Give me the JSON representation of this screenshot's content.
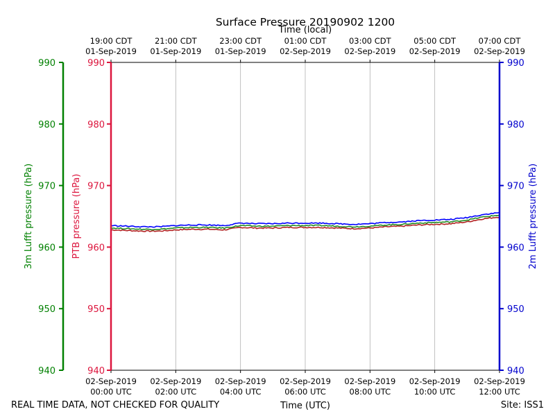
{
  "chart_data": {
    "type": "line",
    "title": "Surface Pressure 20190902 1200",
    "top_axis_label": "Time (local)",
    "xlabel": "Time (UTC)",
    "x_ticks_utc": [
      [
        "02-Sep-2019",
        "00:00 UTC"
      ],
      [
        "02-Sep-2019",
        "02:00 UTC"
      ],
      [
        "02-Sep-2019",
        "04:00 UTC"
      ],
      [
        "02-Sep-2019",
        "06:00 UTC"
      ],
      [
        "02-Sep-2019",
        "08:00 UTC"
      ],
      [
        "02-Sep-2019",
        "10:00 UTC"
      ],
      [
        "02-Sep-2019",
        "12:00 UTC"
      ]
    ],
    "x_ticks_local": [
      [
        "19:00 CDT",
        "01-Sep-2019"
      ],
      [
        "21:00 CDT",
        "01-Sep-2019"
      ],
      [
        "23:00 CDT",
        "01-Sep-2019"
      ],
      [
        "01:00 CDT",
        "02-Sep-2019"
      ],
      [
        "03:00 CDT",
        "02-Sep-2019"
      ],
      [
        "05:00 CDT",
        "02-Sep-2019"
      ],
      [
        "07:00 CDT",
        "02-Sep-2019"
      ]
    ],
    "xlim": [
      0,
      12
    ],
    "ylim": [
      940,
      990
    ],
    "y_ticks": [
      "940",
      "950",
      "960",
      "970",
      "980",
      "990"
    ],
    "axes": [
      {
        "label": "3m Lufft pressure (hPa)",
        "color": "#008000",
        "side": "far-left"
      },
      {
        "label": "PTB pressure (hPa)",
        "color": "#dc143c",
        "side": "left"
      },
      {
        "label": "2m Lufft pressure (hPa)",
        "color": "#0000cd",
        "side": "right"
      }
    ],
    "grid": true,
    "series": [
      {
        "color": "#b22222",
        "x": [
          0,
          0.5,
          1,
          1.5,
          2,
          2.5,
          3,
          3.5,
          4,
          4.5,
          5,
          5.5,
          6,
          6.5,
          7,
          7.5,
          8,
          8.5,
          9,
          9.5,
          10,
          10.5,
          11,
          11.5,
          12
        ],
        "values": [
          962.8,
          962.7,
          962.6,
          962.6,
          962.8,
          962.9,
          962.9,
          962.8,
          963.2,
          963.1,
          963.1,
          963.2,
          963.2,
          963.2,
          963.1,
          963.0,
          963.1,
          963.3,
          963.4,
          963.6,
          963.7,
          963.8,
          964.1,
          964.6,
          964.9
        ]
      },
      {
        "color": "#228b22",
        "x": [
          0,
          0.5,
          1,
          1.5,
          2,
          2.5,
          3,
          3.5,
          4,
          4.5,
          5,
          5.5,
          6,
          6.5,
          7,
          7.5,
          8,
          8.5,
          9,
          9.5,
          10,
          10.5,
          11,
          11.5,
          12
        ],
        "values": [
          963.1,
          963.0,
          962.9,
          962.9,
          963.1,
          963.2,
          963.2,
          963.1,
          963.5,
          963.4,
          963.4,
          963.5,
          963.5,
          963.5,
          963.4,
          963.3,
          963.4,
          963.6,
          963.7,
          963.9,
          964.0,
          964.1,
          964.4,
          964.9,
          965.2
        ]
      },
      {
        "color": "#0000ff",
        "x": [
          0,
          0.5,
          1,
          1.5,
          2,
          2.5,
          3,
          3.5,
          4,
          4.5,
          5,
          5.5,
          6,
          6.5,
          7,
          7.5,
          8,
          8.5,
          9,
          9.5,
          10,
          10.5,
          11,
          11.5,
          12
        ],
        "values": [
          963.5,
          963.4,
          963.3,
          963.3,
          963.5,
          963.6,
          963.6,
          963.5,
          963.9,
          963.8,
          963.8,
          963.9,
          963.9,
          963.9,
          963.8,
          963.7,
          963.8,
          964.0,
          964.1,
          964.3,
          964.4,
          964.5,
          964.8,
          965.3,
          965.6
        ]
      }
    ],
    "footer_left": "REAL TIME DATA, NOT CHECKED FOR QUALITY",
    "footer_right": "Site: ISS1"
  }
}
